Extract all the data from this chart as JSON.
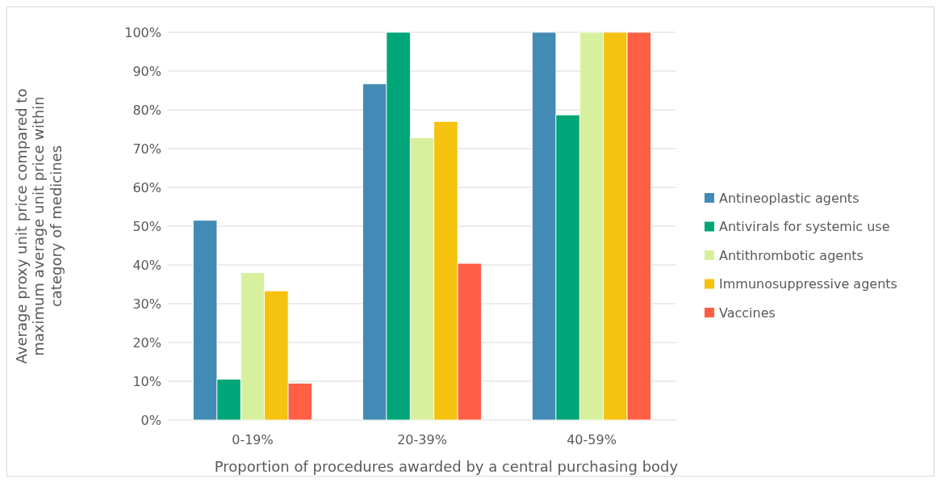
{
  "chart_data": {
    "type": "bar",
    "xlabel": "Proportion of procedures awarded by a central purchasing body",
    "ylabel": "Average proxy unit price compared to maximum average unit price within category of medicines",
    "categories": [
      "0-19%",
      "20-39%",
      "40-59%"
    ],
    "series": [
      {
        "name": "Antineoplastic agents",
        "color": "#428bb5",
        "values": [
          51.5,
          86.7,
          100
        ]
      },
      {
        "name": "Antivirals for systemic use",
        "color": "#00a678",
        "values": [
          10.5,
          100,
          78.7
        ]
      },
      {
        "name": "Antithrombotic agents",
        "color": "#d7f09e",
        "values": [
          38,
          72.8,
          100
        ]
      },
      {
        "name": "Immunosuppressive agents",
        "color": "#f4c20f",
        "values": [
          33.3,
          77,
          100
        ]
      },
      {
        "name": "Vaccines",
        "color": "#ff5f45",
        "values": [
          9.5,
          40.4,
          100
        ]
      }
    ],
    "ylim": [
      0,
      100
    ],
    "yticks": [
      {
        "value": 0,
        "label": "0%"
      },
      {
        "value": 10,
        "label": "10%"
      },
      {
        "value": 20,
        "label": "20%"
      },
      {
        "value": 30,
        "label": "30%"
      },
      {
        "value": 40,
        "label": "40%"
      },
      {
        "value": 50,
        "label": "50%"
      },
      {
        "value": 60,
        "label": "60%"
      },
      {
        "value": 70,
        "label": "70%"
      },
      {
        "value": 80,
        "label": "80%"
      },
      {
        "value": 90,
        "label": "90%"
      },
      {
        "value": 100,
        "label": "100%"
      }
    ],
    "grid": "y",
    "legend": "right"
  }
}
